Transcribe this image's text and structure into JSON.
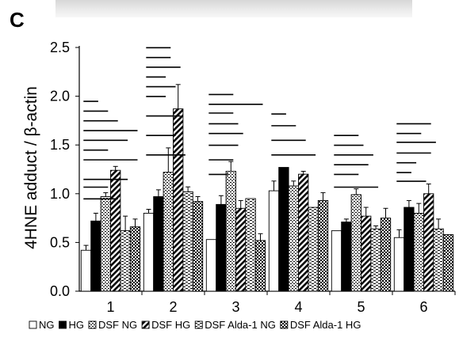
{
  "panel_label": "C",
  "chart_data": {
    "type": "bar",
    "title": "",
    "ylabel": "4HNE adduct / β-actin",
    "xlabel": "",
    "ylim": [
      0,
      2.5
    ],
    "yticks": [
      "0.0",
      "0.5",
      "1.0",
      "1.5",
      "2.0",
      "2.5"
    ],
    "categories": [
      "1",
      "2",
      "3",
      "4",
      "5",
      "6"
    ],
    "legend_position": "bottom",
    "series": [
      {
        "name": "NG",
        "pattern": "white",
        "values": [
          0.42,
          0.8,
          0.53,
          1.03,
          0.62,
          0.55
        ],
        "errors": [
          0.05,
          0.04,
          0.0,
          0.1,
          0.0,
          0.08
        ]
      },
      {
        "name": "HG",
        "pattern": "black",
        "values": [
          0.72,
          0.97,
          0.89,
          1.27,
          0.71,
          0.86
        ],
        "errors": [
          0.08,
          0.07,
          0.09,
          0.0,
          0.03,
          0.07
        ]
      },
      {
        "name": "DSF NG",
        "pattern": "dotted",
        "values": [
          0.97,
          1.22,
          1.23,
          1.08,
          0.99,
          0.8
        ],
        "errors": [
          0.04,
          0.25,
          0.1,
          0.05,
          0.06,
          0.1
        ]
      },
      {
        "name": "DSF HG",
        "pattern": "hatched",
        "values": [
          1.24,
          1.87,
          0.85,
          1.2,
          0.77,
          1.0
        ],
        "errors": [
          0.04,
          0.25,
          0.08,
          0.03,
          0.09,
          0.1
        ]
      },
      {
        "name": "DSF Alda-1 NG",
        "pattern": "dashed",
        "values": [
          0.62,
          1.02,
          0.95,
          0.86,
          0.64,
          0.64
        ],
        "errors": [
          0.15,
          0.05,
          0.0,
          0.0,
          0.03,
          0.1
        ]
      },
      {
        "name": "DSF Alda-1 HG",
        "pattern": "checker",
        "values": [
          0.66,
          0.92,
          0.52,
          0.93,
          0.75,
          0.58
        ],
        "errors": [
          0.08,
          0.05,
          0.07,
          0.08,
          0.1,
          0.0
        ]
      }
    ],
    "significance_lines": [
      [
        [
          1.25,
          5.5
        ],
        [
          0.85,
          3.5
        ],
        [
          1.05,
          4.5
        ],
        [
          0.97,
          2.5
        ],
        [
          1.35,
          2.5
        ],
        [
          1.45,
          4.5
        ],
        [
          1.55,
          5.5
        ],
        [
          1.65,
          3.5
        ],
        [
          1.75,
          2.5
        ],
        [
          1.85,
          1.5
        ]
      ],
      [
        [
          1.3,
          4
        ],
        [
          1.5,
          3
        ],
        [
          1.7,
          3.5
        ],
        [
          1.9,
          2
        ],
        [
          2.0,
          3
        ],
        [
          2.1,
          2
        ],
        [
          2.2,
          3.5
        ],
        [
          2.3,
          2.5
        ],
        [
          2.4,
          2.5
        ]
      ],
      [
        [
          1.1,
          2
        ],
        [
          1.25,
          2.5
        ],
        [
          1.4,
          3
        ],
        [
          1.52,
          3.5
        ],
        [
          1.62,
          3
        ],
        [
          1.73,
          2.5
        ],
        [
          1.82,
          5.5
        ],
        [
          1.92,
          2.5
        ]
      ],
      [
        [
          1.3,
          4.5
        ],
        [
          1.45,
          3.5
        ],
        [
          1.6,
          2.5
        ],
        [
          1.72,
          1.5
        ]
      ],
      [
        [
          0.97,
          4.5
        ],
        [
          1.1,
          2.5
        ],
        [
          1.2,
          3.5
        ],
        [
          1.3,
          4
        ],
        [
          1.4,
          3
        ],
        [
          1.5,
          2.5
        ]
      ],
      [
        [
          1.03,
          3
        ],
        [
          1.12,
          1.5
        ],
        [
          1.22,
          2
        ],
        [
          1.32,
          3.5
        ],
        [
          1.43,
          4
        ],
        [
          1.52,
          2.5
        ],
        [
          1.62,
          3.5
        ]
      ]
    ]
  }
}
